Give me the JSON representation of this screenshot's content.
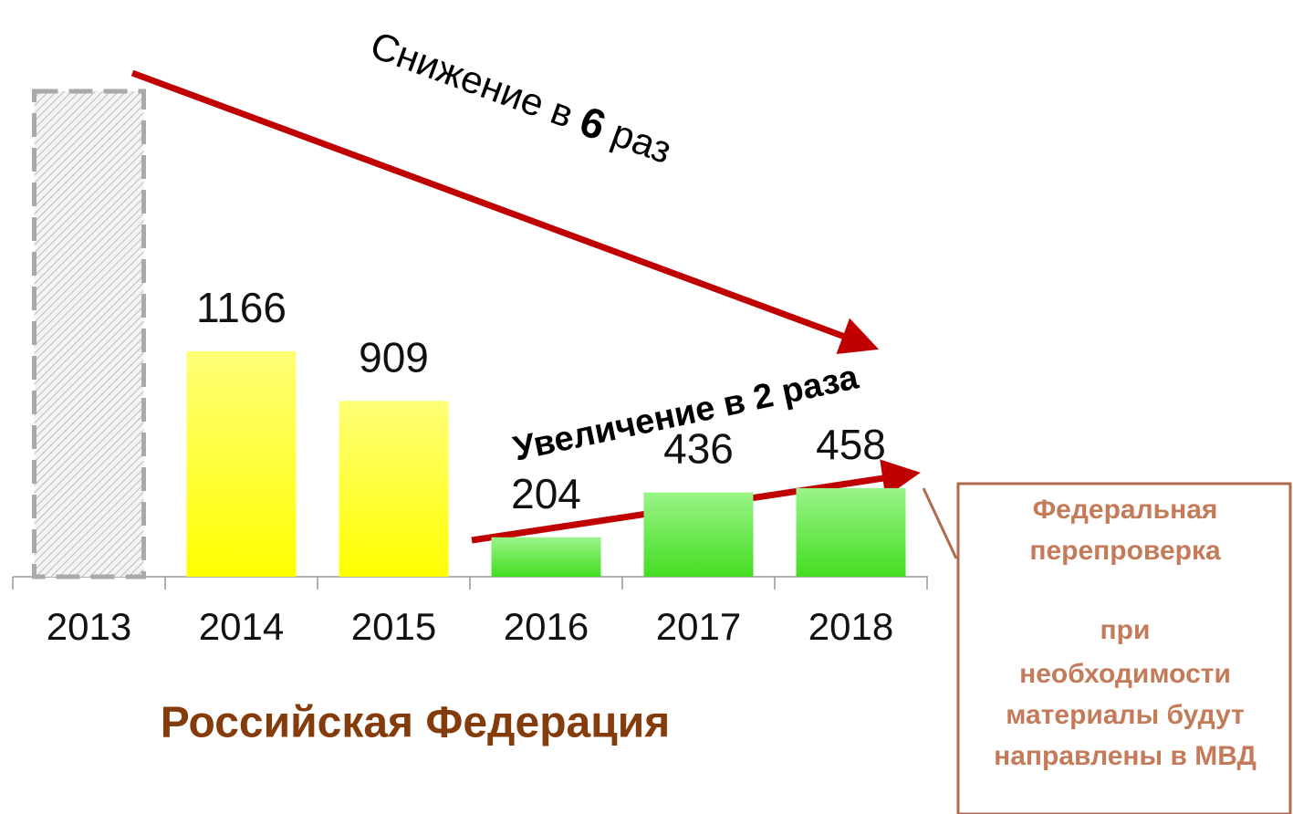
{
  "chart_data": {
    "type": "bar",
    "title": "Российская Федерация",
    "categories": [
      "2013",
      "2014",
      "2015",
      "2016",
      "2017",
      "2018"
    ],
    "values": [
      2510,
      1166,
      909,
      204,
      436,
      458
    ],
    "value_labels": [
      null,
      "1166",
      "909",
      "204",
      "436",
      "458"
    ],
    "colors": [
      "hatch",
      "#ffff33",
      "#ffff33",
      "#66ee44",
      "#66ee44",
      "#66ee44"
    ],
    "annotations": [
      {
        "parts": [
          "Снижение в ",
          "6",
          " раз"
        ]
      },
      {
        "parts": [
          "Увеличение в 2 раза"
        ]
      }
    ],
    "note_box": {
      "lines": [
        "Федеральная",
        "перепроверка",
        "при",
        "необходимости",
        "материалы будут",
        "направлены в МВД"
      ]
    }
  }
}
